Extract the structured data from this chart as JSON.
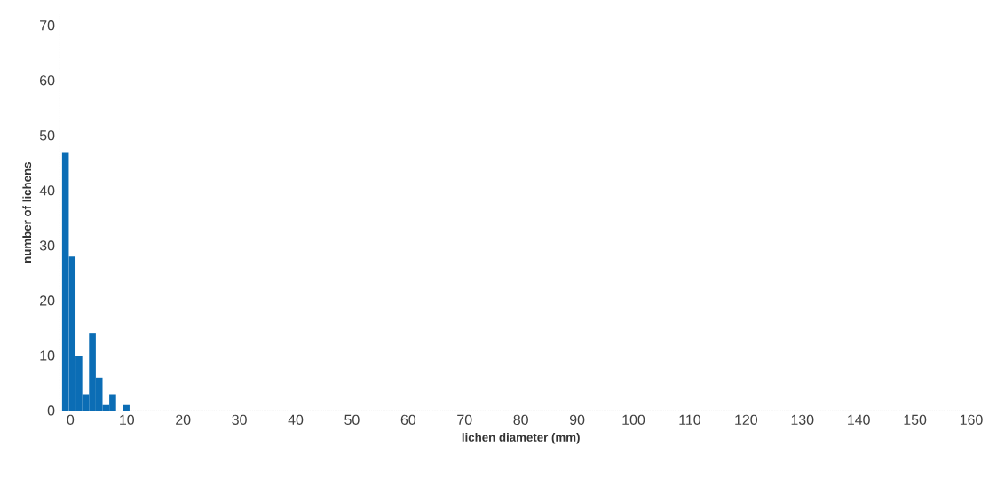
{
  "chart_data": {
    "type": "histogram",
    "xlabel": "lichen diameter (mm)",
    "ylabel": "number of lichens",
    "bins": [
      -1.5,
      -0.3,
      0.9,
      2.1,
      3.3,
      4.5,
      5.7,
      6.9,
      8.1,
      9.3,
      10.5
    ],
    "values": [
      47,
      28,
      10,
      3,
      14,
      6,
      1,
      3,
      0,
      1
    ],
    "color": "#0b6db5",
    "xlim": [
      -2,
      162
    ],
    "xticks": [
      0,
      10,
      20,
      30,
      40,
      50,
      60,
      70,
      80,
      90,
      100,
      110,
      120,
      130,
      140,
      150,
      160
    ],
    "ylim": [
      0,
      72
    ],
    "yticks": [
      0,
      10,
      20,
      30,
      40,
      50,
      60,
      70
    ]
  }
}
